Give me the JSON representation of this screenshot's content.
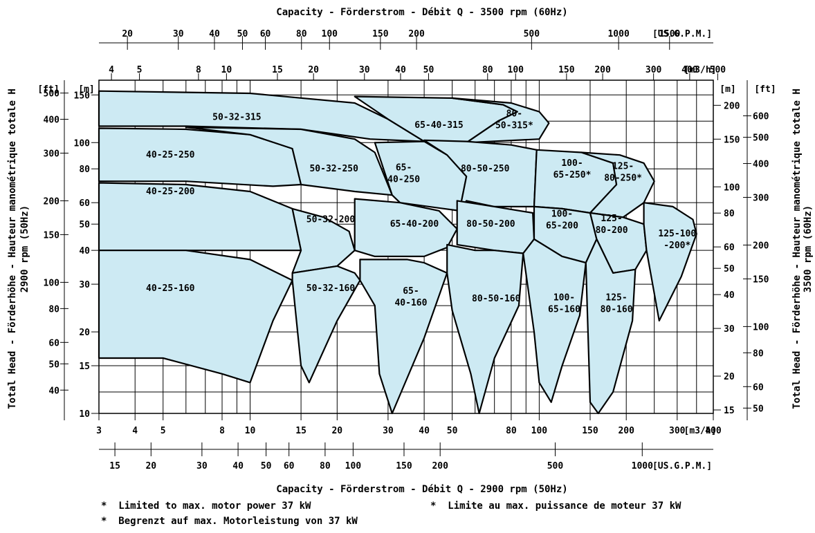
{
  "chart_data": {
    "type": "area",
    "title_top": "Capacity - Förderstrom - Débit  Q  -  3500 rpm (60Hz)",
    "title_bottom": "Capacity - Förderstrom - Débit  Q  -  2900 rpm (50Hz)",
    "ylabel_left": "Total Head - Förderhöhe - Hauteur manométrique totale  H",
    "ylabel_left_sub": "2900 rpm (50Hz)",
    "ylabel_right": "Total Head - Förderhöhe - Hauteur manométrique totale  H",
    "ylabel_right_sub": "3500 rpm (60Hz)",
    "x_scale": "log",
    "y_scale": "log",
    "xlim_m3h": [
      3,
      400
    ],
    "ylim_m": [
      10,
      170
    ],
    "grid": true,
    "axes": {
      "bottom_m3h": {
        "unit": "[m3/h]",
        "ticks": [
          3,
          4,
          5,
          8,
          10,
          15,
          20,
          30,
          40,
          50,
          80,
          100,
          150,
          200,
          300,
          400
        ]
      },
      "bottom_gpm": {
        "unit": "[US.G.P.M.]",
        "ticks": [
          15,
          20,
          30,
          40,
          50,
          60,
          80,
          100,
          150,
          200,
          500,
          1000
        ]
      },
      "top_m3h": {
        "unit": "[m3/h]",
        "ticks": [
          4,
          5,
          8,
          10,
          15,
          20,
          30,
          40,
          50,
          80,
          100,
          150,
          200,
          300,
          400,
          500
        ]
      },
      "top_gpm": {
        "unit": "[US.G.P.M.]",
        "ticks": [
          20,
          30,
          40,
          50,
          60,
          80,
          100,
          150,
          200,
          500,
          1000,
          1500
        ]
      },
      "left_m": {
        "unit": "[m]",
        "ticks": [
          10,
          15,
          20,
          30,
          40,
          50,
          60,
          80,
          100,
          150
        ]
      },
      "left_ft": {
        "unit": "[ft]",
        "ticks": [
          40,
          50,
          60,
          80,
          100,
          150,
          200,
          300,
          400,
          500
        ]
      },
      "right_m": {
        "unit": "[m]",
        "ticks": [
          15,
          20,
          30,
          40,
          50,
          60,
          80,
          100,
          150,
          200
        ]
      },
      "right_ft": {
        "unit": "[ft]",
        "ticks": [
          50,
          60,
          80,
          100,
          150,
          200,
          300,
          400,
          500,
          600
        ]
      }
    },
    "regions": [
      {
        "name": "50-32-315",
        "label": [
          "50-32-315"
        ],
        "label_at": [
          9,
          124
        ],
        "poly": [
          [
            3,
            155
          ],
          [
            10,
            152
          ],
          [
            23,
            140
          ],
          [
            30,
            122
          ],
          [
            40,
            101
          ],
          [
            26,
            103
          ],
          [
            15,
            112
          ],
          [
            6,
            115
          ],
          [
            3,
            115
          ]
        ]
      },
      {
        "name": "65-40-315",
        "label": [
          "65-40-315"
        ],
        "label_at": [
          45,
          116
        ],
        "poly": [
          [
            23,
            148
          ],
          [
            50,
            146
          ],
          [
            75,
            138
          ],
          [
            84,
            130
          ],
          [
            72,
            120
          ],
          [
            56,
            100
          ],
          [
            40,
            101
          ],
          [
            30,
            122
          ]
        ]
      },
      {
        "name": "80-50-315",
        "label": [
          "80-",
          "50-315*"
        ],
        "label_at": [
          82,
          122
        ],
        "poly": [
          [
            50,
            146
          ],
          [
            80,
            140
          ],
          [
            100,
            130
          ],
          [
            108,
            118
          ],
          [
            100,
            103
          ],
          [
            56,
            100
          ],
          [
            72,
            120
          ],
          [
            84,
            130
          ],
          [
            75,
            138
          ]
        ]
      },
      {
        "name": "40-25-250",
        "label": [
          "40-25-250"
        ],
        "label_at": [
          5.3,
          90
        ],
        "poly": [
          [
            3,
            113
          ],
          [
            6,
            112
          ],
          [
            10,
            107
          ],
          [
            14,
            95
          ],
          [
            15,
            70
          ],
          [
            12,
            69
          ],
          [
            6,
            72
          ],
          [
            3,
            72
          ]
        ]
      },
      {
        "name": "50-32-250",
        "label": [
          "50-32-250"
        ],
        "label_at": [
          19.5,
          80
        ],
        "poly": [
          [
            6,
            114
          ],
          [
            15,
            112
          ],
          [
            23,
            103
          ],
          [
            27,
            92
          ],
          [
            31,
            64
          ],
          [
            23,
            66
          ],
          [
            15,
            70
          ],
          [
            14,
            95
          ],
          [
            10,
            107
          ]
        ]
      },
      {
        "name": "65-40-250",
        "label": [
          "65-",
          "40-250"
        ],
        "label_at": [
          34,
          77
        ],
        "poly": [
          [
            27,
            100
          ],
          [
            40,
            101
          ],
          [
            48,
            90
          ],
          [
            56,
            75
          ],
          [
            53,
            56
          ],
          [
            33,
            60
          ],
          [
            31,
            64
          ]
        ]
      },
      {
        "name": "80-50-250",
        "label": [
          "80-50-250"
        ],
        "label_at": [
          65,
          80
        ],
        "poly": [
          [
            40,
            102
          ],
          [
            56,
            101
          ],
          [
            80,
            98
          ],
          [
            98,
            94
          ],
          [
            96,
            58
          ],
          [
            70,
            58
          ],
          [
            56,
            61
          ],
          [
            53,
            56
          ],
          [
            56,
            75
          ],
          [
            48,
            90
          ]
        ]
      },
      {
        "name": "100-65-250",
        "label": [
          "100-",
          "65-250*"
        ],
        "label_at": [
          130,
          80
        ],
        "poly": [
          [
            98,
            94
          ],
          [
            140,
            92
          ],
          [
            180,
            84
          ],
          [
            185,
            70
          ],
          [
            150,
            55
          ],
          [
            120,
            57
          ],
          [
            96,
            58
          ]
        ]
      },
      {
        "name": "125-80-250",
        "label": [
          "125-",
          "80-250*"
        ],
        "label_at": [
          195,
          78
        ],
        "poly": [
          [
            140,
            92
          ],
          [
            190,
            90
          ],
          [
            230,
            84
          ],
          [
            250,
            72
          ],
          [
            230,
            60
          ],
          [
            195,
            53
          ],
          [
            150,
            55
          ],
          [
            185,
            70
          ],
          [
            180,
            84
          ]
        ]
      },
      {
        "name": "40-25-200",
        "label": [
          "40-25-200"
        ],
        "label_at": [
          5.3,
          66
        ],
        "poly": [
          [
            3,
            71
          ],
          [
            6,
            70
          ],
          [
            10,
            66
          ],
          [
            14,
            57
          ],
          [
            15,
            40
          ],
          [
            12,
            40
          ],
          [
            6,
            40
          ],
          [
            3,
            40
          ]
        ]
      },
      {
        "name": "50-32-200",
        "label": [
          "50-32-200"
        ],
        "label_at": [
          19,
          52
        ],
        "poly": [
          [
            14,
            57
          ],
          [
            18,
            53
          ],
          [
            22,
            47
          ],
          [
            23,
            40
          ],
          [
            20,
            35
          ],
          [
            14,
            33
          ],
          [
            15,
            40
          ]
        ]
      },
      {
        "name": "65-40-200",
        "label": [
          "65-40-200"
        ],
        "label_at": [
          37,
          50
        ],
        "poly": [
          [
            23,
            62
          ],
          [
            33,
            60
          ],
          [
            45,
            56
          ],
          [
            52,
            48
          ],
          [
            48,
            41
          ],
          [
            40,
            38
          ],
          [
            27,
            38
          ],
          [
            23,
            40
          ]
        ]
      },
      {
        "name": "80-50-200",
        "label": [
          "80-50-200"
        ],
        "label_at": [
          68,
          50
        ],
        "poly": [
          [
            52,
            61
          ],
          [
            70,
            58
          ],
          [
            95,
            55
          ],
          [
            96,
            44
          ],
          [
            88,
            39
          ],
          [
            70,
            40
          ],
          [
            52,
            42
          ],
          [
            52,
            48
          ]
        ]
      },
      {
        "name": "100-65-200",
        "label": [
          "100-",
          "65-200"
        ],
        "label_at": [
          120,
          52
        ],
        "poly": [
          [
            96,
            58
          ],
          [
            120,
            57
          ],
          [
            150,
            55
          ],
          [
            158,
            44
          ],
          [
            145,
            36
          ],
          [
            120,
            38
          ],
          [
            96,
            44
          ]
        ]
      },
      {
        "name": "125-80-200",
        "label": [
          "125-",
          "80-200"
        ],
        "label_at": [
          178,
          50
        ],
        "poly": [
          [
            150,
            55
          ],
          [
            195,
            53
          ],
          [
            230,
            50
          ],
          [
            235,
            40
          ],
          [
            215,
            34
          ],
          [
            180,
            33
          ],
          [
            158,
            44
          ]
        ]
      },
      {
        "name": "125-100-200",
        "label": [
          "125-100",
          "-200*"
        ],
        "label_at": [
          300,
          44
        ],
        "poly": [
          [
            230,
            60
          ],
          [
            290,
            58
          ],
          [
            340,
            52
          ],
          [
            350,
            46
          ],
          [
            310,
            32
          ],
          [
            260,
            22
          ],
          [
            235,
            40
          ],
          [
            230,
            50
          ]
        ]
      },
      {
        "name": "40-25-160",
        "label": [
          "40-25-160"
        ],
        "label_at": [
          5.3,
          29
        ],
        "poly": [
          [
            3,
            40
          ],
          [
            6,
            40
          ],
          [
            10,
            37
          ],
          [
            14,
            31
          ],
          [
            12,
            22
          ],
          [
            10,
            13
          ],
          [
            8,
            14
          ],
          [
            5,
            16
          ],
          [
            3,
            16
          ]
        ]
      },
      {
        "name": "50-32-160",
        "label": [
          "50-32-160"
        ],
        "label_at": [
          19,
          29
        ],
        "poly": [
          [
            14,
            33
          ],
          [
            20,
            35
          ],
          [
            23,
            33
          ],
          [
            24,
            31
          ],
          [
            20,
            22
          ],
          [
            16,
            13
          ],
          [
            15,
            15
          ],
          [
            14,
            31
          ]
        ]
      },
      {
        "name": "65-40-160",
        "label": [
          "65-",
          "40-160"
        ],
        "label_at": [
          36,
          27
        ],
        "poly": [
          [
            24,
            37
          ],
          [
            35,
            37
          ],
          [
            40,
            36
          ],
          [
            48,
            33
          ],
          [
            40,
            19
          ],
          [
            31,
            10
          ],
          [
            28,
            14
          ],
          [
            27,
            25
          ],
          [
            24,
            31
          ]
        ]
      },
      {
        "name": "80-50-160",
        "label": [
          "80-50-160"
        ],
        "label_at": [
          71,
          26.5
        ],
        "poly": [
          [
            48,
            42
          ],
          [
            60,
            40
          ],
          [
            70,
            40
          ],
          [
            88,
            39
          ],
          [
            85,
            25
          ],
          [
            70,
            16
          ],
          [
            62,
            10
          ],
          [
            58,
            14
          ],
          [
            50,
            24
          ],
          [
            48,
            33
          ]
        ]
      },
      {
        "name": "100-65-160",
        "label": [
          "100-",
          "65-160"
        ],
        "label_at": [
          122,
          25.5
        ],
        "poly": [
          [
            96,
            44
          ],
          [
            120,
            38
          ],
          [
            145,
            36
          ],
          [
            138,
            23
          ],
          [
            120,
            15
          ],
          [
            110,
            11
          ],
          [
            100,
            13
          ],
          [
            96,
            20
          ],
          [
            88,
            39
          ],
          [
            96,
            44
          ]
        ]
      },
      {
        "name": "125-80-160",
        "label": [
          "125-",
          "80-160"
        ],
        "label_at": [
          185,
          25.5
        ],
        "poly": [
          [
            158,
            44
          ],
          [
            180,
            33
          ],
          [
            215,
            34
          ],
          [
            210,
            22
          ],
          [
            180,
            12
          ],
          [
            160,
            10
          ],
          [
            150,
            11
          ],
          [
            145,
            36
          ]
        ]
      }
    ],
    "notes": [
      "*  Limited to max. motor power 37 kW",
      "*  Limite au max. puissance de moteur 37 kW",
      "*  Begrenzt auf max. Motorleistung von 37 kW"
    ]
  }
}
